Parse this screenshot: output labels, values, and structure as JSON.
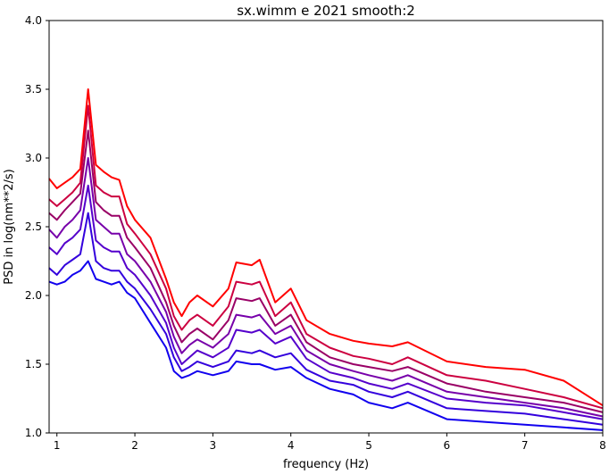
{
  "chart_data": {
    "type": "line",
    "title": "sx.wimm e 2021 smooth:2",
    "xlabel": "frequency (Hz)",
    "ylabel": "PSD in log(nm**2/s)",
    "xlim": [
      0.9,
      8
    ],
    "ylim": [
      1.0,
      4.0
    ],
    "x_ticks": [
      "1",
      "2",
      "3",
      "4",
      "5",
      "6",
      "7",
      "8"
    ],
    "y_ticks": [
      "1.0",
      "1.5",
      "2.0",
      "2.5",
      "3.0",
      "3.5",
      "4.0"
    ],
    "grid": false,
    "legend": "none",
    "x": [
      0.9,
      1.0,
      1.1,
      1.2,
      1.3,
      1.4,
      1.5,
      1.6,
      1.7,
      1.8,
      1.9,
      2.0,
      2.2,
      2.4,
      2.5,
      2.6,
      2.7,
      2.8,
      3.0,
      3.2,
      3.3,
      3.5,
      3.6,
      3.8,
      4.0,
      4.2,
      4.5,
      4.8,
      5.0,
      5.3,
      5.5,
      6.0,
      6.5,
      7.0,
      7.5,
      8.0
    ],
    "series": [
      {
        "color": "#ff0000",
        "values": [
          2.85,
          2.78,
          2.82,
          2.86,
          2.92,
          3.5,
          2.95,
          2.9,
          2.86,
          2.84,
          2.65,
          2.55,
          2.42,
          2.12,
          1.95,
          1.85,
          1.95,
          2.0,
          1.92,
          2.05,
          2.24,
          2.22,
          2.26,
          1.95,
          2.05,
          1.82,
          1.72,
          1.67,
          1.65,
          1.63,
          1.66,
          1.52,
          1.48,
          1.46,
          1.38,
          1.2
        ]
      },
      {
        "color": "#cc0040",
        "values": [
          2.7,
          2.65,
          2.7,
          2.75,
          2.82,
          3.38,
          2.8,
          2.75,
          2.72,
          2.72,
          2.52,
          2.45,
          2.3,
          2.05,
          1.85,
          1.75,
          1.82,
          1.86,
          1.78,
          1.92,
          2.1,
          2.08,
          2.1,
          1.85,
          1.95,
          1.72,
          1.62,
          1.56,
          1.54,
          1.5,
          1.55,
          1.42,
          1.38,
          1.32,
          1.26,
          1.18
        ]
      },
      {
        "color": "#990066",
        "values": [
          2.6,
          2.55,
          2.62,
          2.68,
          2.74,
          3.2,
          2.68,
          2.62,
          2.58,
          2.58,
          2.42,
          2.35,
          2.2,
          1.95,
          1.78,
          1.66,
          1.72,
          1.76,
          1.68,
          1.82,
          1.98,
          1.96,
          1.98,
          1.78,
          1.86,
          1.66,
          1.55,
          1.5,
          1.48,
          1.45,
          1.48,
          1.36,
          1.3,
          1.26,
          1.22,
          1.15
        ]
      },
      {
        "color": "#7700aa",
        "values": [
          2.48,
          2.42,
          2.5,
          2.55,
          2.62,
          3.0,
          2.55,
          2.5,
          2.45,
          2.45,
          2.3,
          2.25,
          2.1,
          1.88,
          1.7,
          1.58,
          1.64,
          1.68,
          1.62,
          1.72,
          1.86,
          1.84,
          1.86,
          1.72,
          1.78,
          1.6,
          1.5,
          1.45,
          1.42,
          1.38,
          1.42,
          1.3,
          1.26,
          1.22,
          1.18,
          1.12
        ]
      },
      {
        "color": "#5500cc",
        "values": [
          2.35,
          2.3,
          2.38,
          2.42,
          2.48,
          2.8,
          2.4,
          2.35,
          2.32,
          2.32,
          2.2,
          2.15,
          2.0,
          1.8,
          1.62,
          1.5,
          1.55,
          1.6,
          1.55,
          1.62,
          1.75,
          1.73,
          1.75,
          1.65,
          1.7,
          1.54,
          1.44,
          1.4,
          1.36,
          1.32,
          1.36,
          1.25,
          1.22,
          1.2,
          1.15,
          1.1
        ]
      },
      {
        "color": "#3300dd",
        "values": [
          2.2,
          2.15,
          2.22,
          2.26,
          2.3,
          2.6,
          2.25,
          2.2,
          2.18,
          2.18,
          2.1,
          2.05,
          1.9,
          1.72,
          1.55,
          1.45,
          1.48,
          1.52,
          1.48,
          1.52,
          1.6,
          1.58,
          1.6,
          1.55,
          1.58,
          1.46,
          1.38,
          1.35,
          1.3,
          1.26,
          1.3,
          1.18,
          1.16,
          1.14,
          1.1,
          1.06
        ]
      },
      {
        "color": "#1100ee",
        "values": [
          2.1,
          2.08,
          2.1,
          2.15,
          2.18,
          2.25,
          2.12,
          2.1,
          2.08,
          2.1,
          2.02,
          1.98,
          1.8,
          1.62,
          1.45,
          1.4,
          1.42,
          1.45,
          1.42,
          1.45,
          1.52,
          1.5,
          1.5,
          1.46,
          1.48,
          1.4,
          1.32,
          1.28,
          1.22,
          1.18,
          1.22,
          1.1,
          1.08,
          1.06,
          1.04,
          1.02
        ]
      }
    ]
  }
}
